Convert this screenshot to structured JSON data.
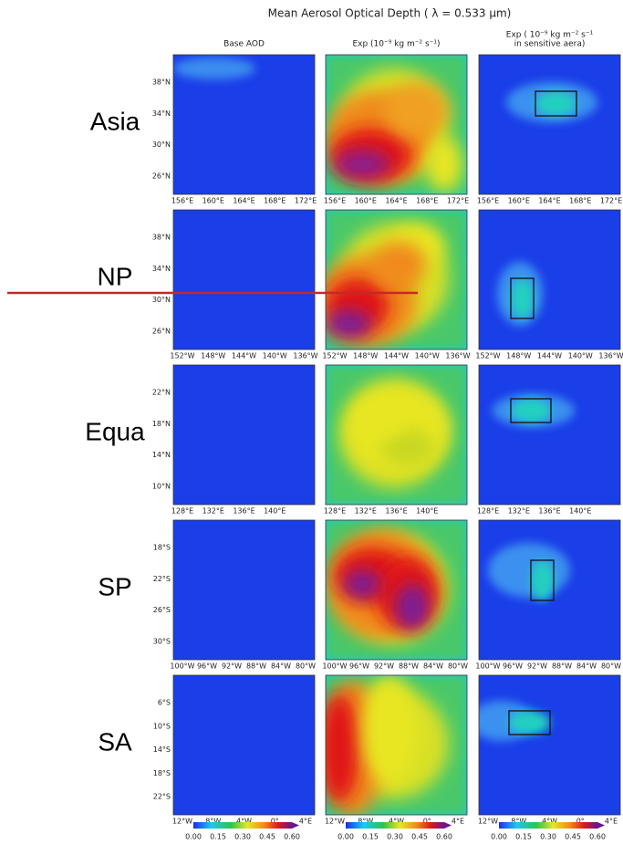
{
  "title": "Mean Aerosol Optical Depth ( λ = 0.533 µm)",
  "columns": [
    [
      "Base AOD"
    ],
    [
      "Exp (10⁻⁹ kg m⁻² s⁻¹)"
    ],
    [
      "Exp ( 10⁻⁹ kg m⁻² s⁻¹",
      "in sensitive aera)"
    ]
  ],
  "rows": [
    {
      "label": "Asia",
      "lat": [
        "38°N",
        "34°N",
        "30°N",
        "26°N"
      ],
      "lon": [
        "156°E",
        "160°E",
        "164°E",
        "168°E",
        "172°E"
      ]
    },
    {
      "label": "NP",
      "lat": [
        "38°N",
        "34°N",
        "30°N",
        "26°N"
      ],
      "lon": [
        "152°W",
        "148°W",
        "144°W",
        "140°W",
        "136°W"
      ]
    },
    {
      "label": "Equa",
      "lat": [
        "22°N",
        "18°N",
        "14°N",
        "10°N"
      ],
      "lon": [
        "128°E",
        "132°E",
        "136°E",
        "140°E"
      ]
    },
    {
      "label": "SP",
      "lat": [
        "18°S",
        "22°S",
        "26°S",
        "30°S"
      ],
      "lon": [
        "100°W",
        "96°W",
        "92°W",
        "88°W",
        "84°W",
        "80°W"
      ]
    },
    {
      "label": "SA",
      "lat": [
        "6°S",
        "10°S",
        "14°S",
        "18°S",
        "22°S"
      ],
      "lon": [
        "12°W",
        "8°W",
        "4°W",
        "0°",
        "4°E"
      ]
    }
  ],
  "colorbar": [
    "0.00",
    "0.15",
    "0.30",
    "0.45",
    "0.60"
  ]
}
